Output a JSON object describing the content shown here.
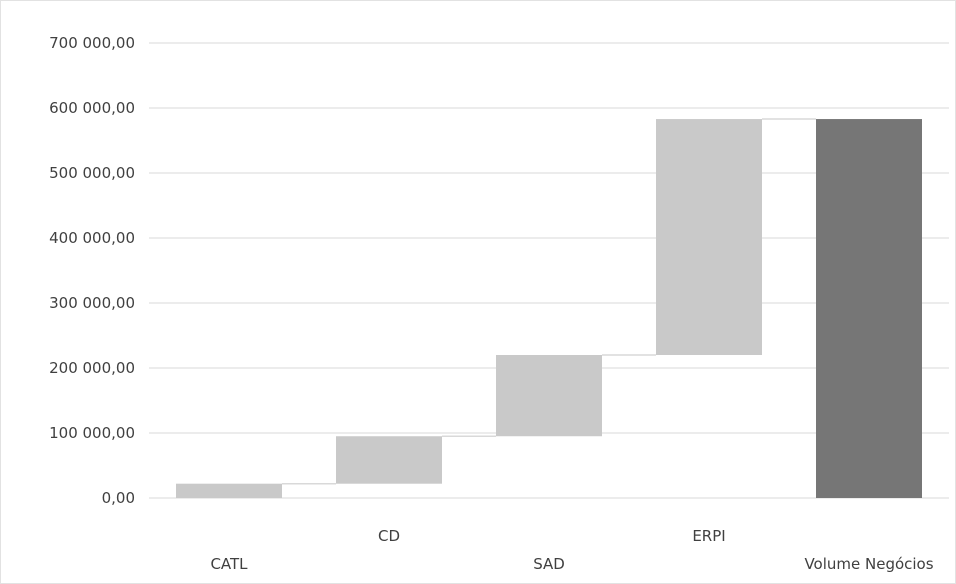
{
  "chart_data": {
    "type": "bar",
    "subtype": "waterfall",
    "title": "",
    "xlabel": "",
    "ylabel": "",
    "ylim": [
      0,
      700000
    ],
    "y_tick_values": [
      0,
      100000,
      200000,
      300000,
      400000,
      500000,
      600000,
      700000
    ],
    "y_tick_labels": [
      "0,00",
      "100 000,00",
      "200 000,00",
      "300 000,00",
      "400 000,00",
      "500 000,00",
      "600 000,00",
      "700 000,00"
    ],
    "grid": true,
    "legend": "none",
    "categories": [
      "CATL",
      "CD",
      "SAD",
      "ERPI",
      "Volume Negócios"
    ],
    "x_label_rows": [
      "low",
      "high",
      "low",
      "high",
      "low"
    ],
    "base": [
      0,
      22000,
      95000,
      220000,
      0
    ],
    "values": [
      22000,
      73000,
      125000,
      363000,
      583000
    ],
    "is_total": [
      false,
      false,
      false,
      false,
      true
    ],
    "colors": {
      "increment": "#c9c9c9",
      "total": "#767676",
      "grid": "#d9d9d9",
      "connector": "#d9d9d9"
    }
  }
}
